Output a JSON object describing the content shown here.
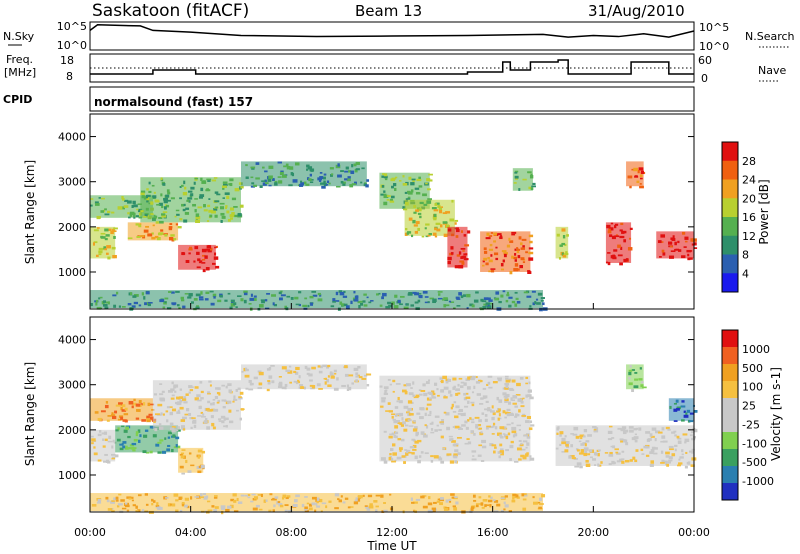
{
  "header": {
    "title": "Saskatoon (fitACF)",
    "beam": "Beam 13",
    "date": "31/Aug/2010"
  },
  "top_panels": {
    "nsky_label": "N.Sky",
    "nsky_ticks": [
      "10^5",
      "10^0"
    ],
    "nsearch_label": "N.Search",
    "nsearch_ticks": [
      "10^5",
      "10^0"
    ],
    "freq_label_line1": "Freq.",
    "freq_label_line2": "[MHz]",
    "freq_ticks": [
      "18",
      "8"
    ],
    "nave_label": "Nave",
    "nave_ticks": [
      "60",
      "0"
    ],
    "cpid_label": "CPID",
    "cpid_text": "normalsound (fast) 157"
  },
  "colors": {
    "power": [
      "#1a1aee",
      "#2a5fb0",
      "#2e8f6a",
      "#55b050",
      "#b8d030",
      "#f0a020",
      "#f06010",
      "#e01010"
    ],
    "velocity": [
      "#e01010",
      "#f06020",
      "#f0a020",
      "#f5c040",
      "#c8c8c8",
      "#c8c8c8",
      "#80d050",
      "#3aa060",
      "#2a7fb0",
      "#2030c0"
    ],
    "trace": "#000000"
  },
  "chart_data": [
    {
      "type": "heatmap",
      "name": "power",
      "ylabel": "Slant Range [km]",
      "xlabel": "Time UT",
      "xlim": [
        0,
        24
      ],
      "ylim": [
        180,
        4500
      ],
      "x_ticks": [
        "00:00",
        "04:00",
        "08:00",
        "12:00",
        "16:00",
        "20:00",
        "00:00"
      ],
      "y_ticks": [
        1000,
        2000,
        3000,
        4000
      ],
      "colorbar": {
        "label": "Power [dB]",
        "ticks": [
          "28",
          "24",
          "20",
          "16",
          "12",
          "8",
          "4"
        ],
        "range": [
          0,
          32
        ]
      },
      "regions": [
        {
          "t0": 0.0,
          "t1": 1.0,
          "r0": 1300,
          "r1": 2000,
          "level": 4
        },
        {
          "t0": 0.0,
          "t1": 2.5,
          "r0": 2200,
          "r1": 2700,
          "level": 3
        },
        {
          "t0": 1.5,
          "t1": 3.5,
          "r0": 1700,
          "r1": 2100,
          "level": 5
        },
        {
          "t0": 3.5,
          "t1": 5.0,
          "r0": 1050,
          "r1": 1600,
          "level": 7
        },
        {
          "t0": 2.0,
          "t1": 6.0,
          "r0": 2100,
          "r1": 3100,
          "level": 3
        },
        {
          "t0": 6.0,
          "t1": 11.0,
          "r0": 2900,
          "r1": 3450,
          "level": 2
        },
        {
          "t0": 11.5,
          "t1": 13.5,
          "r0": 2400,
          "r1": 3200,
          "level": 3
        },
        {
          "t0": 12.5,
          "t1": 14.5,
          "r0": 1800,
          "r1": 2600,
          "level": 4
        },
        {
          "t0": 14.2,
          "t1": 15.0,
          "r0": 1100,
          "r1": 2000,
          "level": 7
        },
        {
          "t0": 15.5,
          "t1": 17.5,
          "r0": 1000,
          "r1": 1900,
          "level": 6
        },
        {
          "t0": 16.8,
          "t1": 17.6,
          "r0": 2800,
          "r1": 3300,
          "level": 3
        },
        {
          "t0": 18.5,
          "t1": 19.0,
          "r0": 1300,
          "r1": 2000,
          "level": 4
        },
        {
          "t0": 20.5,
          "t1": 21.5,
          "r0": 1200,
          "r1": 2100,
          "level": 7
        },
        {
          "t0": 21.3,
          "t1": 22.0,
          "r0": 2900,
          "r1": 3450,
          "level": 6
        },
        {
          "t0": 22.5,
          "t1": 24.0,
          "r0": 1300,
          "r1": 1900,
          "level": 7
        },
        {
          "t0": 0.0,
          "t1": 18.0,
          "r0": 200,
          "r1": 600,
          "level": 2
        }
      ]
    },
    {
      "type": "heatmap",
      "name": "velocity",
      "ylabel": "Slant Range [km]",
      "xlabel": "Time UT",
      "xlim": [
        0,
        24
      ],
      "ylim": [
        180,
        4500
      ],
      "x_ticks": [
        "00:00",
        "04:00",
        "08:00",
        "12:00",
        "16:00",
        "20:00",
        "00:00"
      ],
      "y_ticks": [
        1000,
        2000,
        3000,
        4000
      ],
      "colorbar": {
        "label": "Velocity [m s-1]",
        "ticks": [
          "1000",
          "500",
          "100",
          "25",
          "-25",
          "-100",
          "-500",
          "-1000"
        ]
      },
      "regions": [
        {
          "t0": 0.0,
          "t1": 1.0,
          "r0": 1300,
          "r1": 2000,
          "level": 4
        },
        {
          "t0": 0.0,
          "t1": 2.5,
          "r0": 2200,
          "r1": 2700,
          "level": 2
        },
        {
          "t0": 1.0,
          "t1": 3.5,
          "r0": 1500,
          "r1": 2100,
          "level": 7
        },
        {
          "t0": 3.5,
          "t1": 4.5,
          "r0": 1050,
          "r1": 1600,
          "level": 3
        },
        {
          "t0": 2.5,
          "t1": 6.0,
          "r0": 2000,
          "r1": 3100,
          "level": 4
        },
        {
          "t0": 6.0,
          "t1": 11.0,
          "r0": 2900,
          "r1": 3450,
          "level": 4
        },
        {
          "t0": 11.5,
          "t1": 17.5,
          "r0": 1300,
          "r1": 3200,
          "level": 4
        },
        {
          "t0": 18.5,
          "t1": 24.0,
          "r0": 1200,
          "r1": 2100,
          "level": 4
        },
        {
          "t0": 21.3,
          "t1": 22.0,
          "r0": 2900,
          "r1": 3450,
          "level": 6
        },
        {
          "t0": 23.0,
          "t1": 24.0,
          "r0": 2200,
          "r1": 2700,
          "level": 8
        },
        {
          "t0": 0.0,
          "t1": 18.0,
          "r0": 200,
          "r1": 600,
          "level": 3
        }
      ]
    },
    {
      "type": "line",
      "name": "n_sky",
      "x": [
        0,
        0.3,
        2.0,
        2.5,
        4.0,
        6.0,
        9.0,
        12.0,
        15.0,
        18.0,
        19.0,
        20.0,
        21.0,
        22.0,
        23.0,
        24.0
      ],
      "y": [
        3.5,
        4.5,
        4.3,
        3.5,
        3.2,
        2.6,
        2.4,
        2.5,
        2.6,
        2.8,
        2.3,
        2.6,
        2.4,
        2.9,
        2.3,
        3.4
      ]
    },
    {
      "type": "line",
      "name": "freq",
      "x": [
        0,
        1.0,
        2.0,
        2.5,
        4.0,
        4.2,
        6.0,
        14.5,
        15.0,
        16.0,
        16.4,
        16.7,
        17.5,
        17.7,
        18.6,
        19.0,
        20.2,
        21.3,
        21.5,
        22.5,
        23.0,
        24.0
      ],
      "y": [
        10,
        10,
        10,
        12,
        12,
        10,
        10,
        10,
        11,
        11,
        16,
        12,
        16,
        16,
        17,
        10,
        10,
        10,
        16,
        16,
        10,
        10
      ]
    }
  ]
}
